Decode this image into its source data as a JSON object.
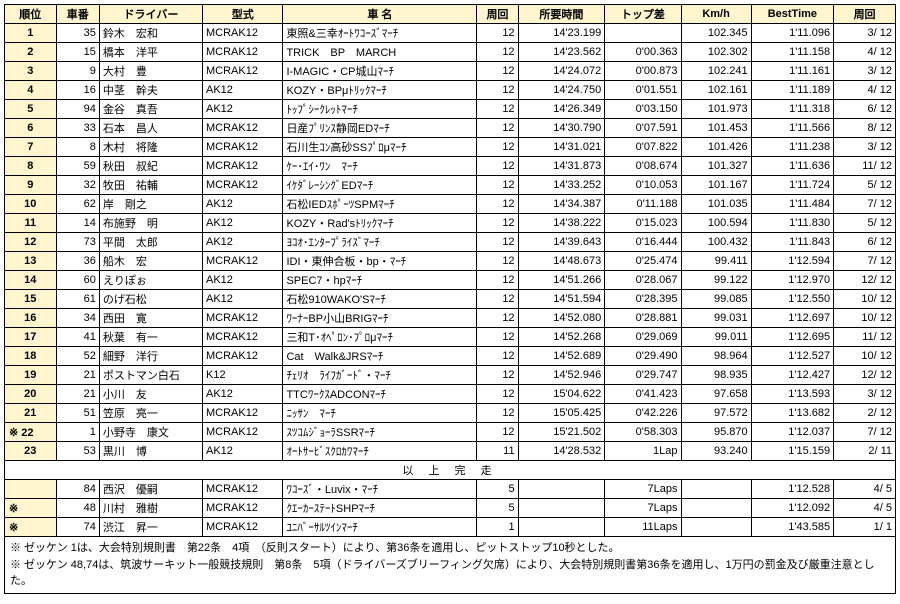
{
  "headers": {
    "rank": "順位",
    "carno": "車番",
    "driver": "ドライバー",
    "model": "型式",
    "carname": "車 名",
    "laps": "周回",
    "time": "所要時間",
    "gap": "トップ差",
    "kmh": "Km/h",
    "best": "BestTime",
    "bestlap": "周回"
  },
  "rows": [
    {
      "rank": "1",
      "carno": "35",
      "driver": "鈴木　宏和",
      "model": "MCRAK12",
      "carname": "東照&三幸ｵｰﾄﾜｺｰｽﾞﾏｰﾁ",
      "laps": "12",
      "time": "14'23.199",
      "gap": "",
      "kmh": "102.345",
      "best": "1'11.096",
      "bestlap": "3/ 12"
    },
    {
      "rank": "2",
      "carno": "15",
      "driver": "橋本　洋平",
      "model": "MCRAK12",
      "carname": "TRICK　BP　MARCH",
      "laps": "12",
      "time": "14'23.562",
      "gap": "0'00.363",
      "kmh": "102.302",
      "best": "1'11.158",
      "bestlap": "4/ 12"
    },
    {
      "rank": "3",
      "carno": "9",
      "driver": "大村　豊",
      "model": "MCRAK12",
      "carname": "I-MAGIC・CP城山ﾏｰﾁ",
      "laps": "12",
      "time": "14'24.072",
      "gap": "0'00.873",
      "kmh": "102.241",
      "best": "1'11.161",
      "bestlap": "3/ 12"
    },
    {
      "rank": "4",
      "carno": "16",
      "driver": "中茎　幹夫",
      "model": "AK12",
      "carname": "KOZY・BPμﾄﾘｯｸﾏｰﾁ",
      "laps": "12",
      "time": "14'24.750",
      "gap": "0'01.551",
      "kmh": "102.161",
      "best": "1'11.189",
      "bestlap": "4/ 12"
    },
    {
      "rank": "5",
      "carno": "94",
      "driver": "金谷　真吾",
      "model": "AK12",
      "carname": "ﾄｯﾌﾟｼｰｸﾚｯﾄﾏｰﾁ",
      "laps": "12",
      "time": "14'26.349",
      "gap": "0'03.150",
      "kmh": "101.973",
      "best": "1'11.318",
      "bestlap": "6/ 12"
    },
    {
      "rank": "6",
      "carno": "33",
      "driver": "石本　昌人",
      "model": "MCRAK12",
      "carname": "日産ﾌﾟﾘﾝｽ静岡EDﾏｰﾁ",
      "laps": "12",
      "time": "14'30.790",
      "gap": "0'07.591",
      "kmh": "101.453",
      "best": "1'11.566",
      "bestlap": "8/ 12"
    },
    {
      "rank": "7",
      "carno": "8",
      "driver": "木村　将隆",
      "model": "MCRAK12",
      "carname": "石川生ｺﾝ高砂SSﾌﾟﾛμﾏｰﾁ",
      "laps": "12",
      "time": "14'31.021",
      "gap": "0'07.822",
      "kmh": "101.426",
      "best": "1'11.238",
      "bestlap": "3/ 12"
    },
    {
      "rank": "8",
      "carno": "59",
      "driver": "秋田　叔紀",
      "model": "MCRAK12",
      "carname": "ｹｰ･ｴｲ･ﾜﾝ　ﾏｰﾁ",
      "laps": "12",
      "time": "14'31.873",
      "gap": "0'08.674",
      "kmh": "101.327",
      "best": "1'11.636",
      "bestlap": "11/ 12"
    },
    {
      "rank": "9",
      "carno": "32",
      "driver": "牧田　祐輔",
      "model": "MCRAK12",
      "carname": "ｲｹﾀﾞﾚｰｼﾝｸﾞEDﾏｰﾁ",
      "laps": "12",
      "time": "14'33.252",
      "gap": "0'10.053",
      "kmh": "101.167",
      "best": "1'11.724",
      "bestlap": "5/ 12"
    },
    {
      "rank": "10",
      "carno": "62",
      "driver": "岸　剛之",
      "model": "AK12",
      "carname": "石松IEDｽﾎﾟｰﾂSPMﾏｰﾁ",
      "laps": "12",
      "time": "14'34.387",
      "gap": "0'11.188",
      "kmh": "101.035",
      "best": "1'11.484",
      "bestlap": "7/ 12"
    },
    {
      "rank": "11",
      "carno": "14",
      "driver": "布施野　明",
      "model": "AK12",
      "carname": "KOZY・Rad'sﾄﾘｯｸﾏｰﾁ",
      "laps": "12",
      "time": "14'38.222",
      "gap": "0'15.023",
      "kmh": "100.594",
      "best": "1'11.830",
      "bestlap": "5/ 12"
    },
    {
      "rank": "12",
      "carno": "73",
      "driver": "平間　太郎",
      "model": "AK12",
      "carname": "ﾖｺｵ･ｴﾝﾀｰﾌﾟﾗｲｽﾞﾏｰﾁ",
      "laps": "12",
      "time": "14'39.643",
      "gap": "0'16.444",
      "kmh": "100.432",
      "best": "1'11.843",
      "bestlap": "6/ 12"
    },
    {
      "rank": "13",
      "carno": "36",
      "driver": "船木　宏",
      "model": "MCRAK12",
      "carname": "IDI・東伸合板・bp・ﾏｰﾁ",
      "laps": "12",
      "time": "14'48.673",
      "gap": "0'25.474",
      "kmh": "99.411",
      "best": "1'12.594",
      "bestlap": "7/ 12"
    },
    {
      "rank": "14",
      "carno": "60",
      "driver": "えりぽぉ",
      "model": "AK12",
      "carname": "SPEC7・hpﾏｰﾁ",
      "laps": "12",
      "time": "14'51.266",
      "gap": "0'28.067",
      "kmh": "99.122",
      "best": "1'12.970",
      "bestlap": "12/ 12"
    },
    {
      "rank": "15",
      "carno": "61",
      "driver": "のげ石松",
      "model": "AK12",
      "carname": "石松910WAKO'Sﾏｰﾁ",
      "laps": "12",
      "time": "14'51.594",
      "gap": "0'28.395",
      "kmh": "99.085",
      "best": "1'12.550",
      "bestlap": "10/ 12"
    },
    {
      "rank": "16",
      "carno": "34",
      "driver": "西田　寛",
      "model": "MCRAK12",
      "carname": "ﾜｰﾅｰBP小山BRIGﾏｰﾁ",
      "laps": "12",
      "time": "14'52.080",
      "gap": "0'28.881",
      "kmh": "99.031",
      "best": "1'12.697",
      "bestlap": "10/ 12"
    },
    {
      "rank": "17",
      "carno": "41",
      "driver": "秋葉　有一",
      "model": "MCRAK12",
      "carname": "三和T･ｵﾍﾟﾛﾝ･ﾌﾟﾛμﾏｰﾁ",
      "laps": "12",
      "time": "14'52.268",
      "gap": "0'29.069",
      "kmh": "99.011",
      "best": "1'12.695",
      "bestlap": "11/ 12"
    },
    {
      "rank": "18",
      "carno": "52",
      "driver": "細野　洋行",
      "model": "MCRAK12",
      "carname": "Cat　Walk&JRSﾏｰﾁ",
      "laps": "12",
      "time": "14'52.689",
      "gap": "0'29.490",
      "kmh": "98.964",
      "best": "1'12.527",
      "bestlap": "10/ 12"
    },
    {
      "rank": "19",
      "carno": "21",
      "driver": "ポストマン白石",
      "model": "K12",
      "carname": "ﾁｪﾘｵ　ﾗｲﾌｶﾞｰﾄﾞ・ﾏｰﾁ",
      "laps": "12",
      "time": "14'52.946",
      "gap": "0'29.747",
      "kmh": "98.935",
      "best": "1'12.427",
      "bestlap": "12/ 12"
    },
    {
      "rank": "20",
      "carno": "21",
      "driver": "小川　友",
      "model": "AK12",
      "carname": "TTCﾜｰｸｽADCONﾏｰﾁ",
      "laps": "12",
      "time": "15'04.622",
      "gap": "0'41.423",
      "kmh": "97.658",
      "best": "1'13.593",
      "bestlap": "3/ 12"
    },
    {
      "rank": "21",
      "carno": "51",
      "driver": "笠原　亮一",
      "model": "MCRAK12",
      "carname": "ﾆｯｻﾝ　ﾏｰﾁ",
      "laps": "12",
      "time": "15'05.425",
      "gap": "0'42.226",
      "kmh": "97.572",
      "best": "1'13.682",
      "bestlap": "2/ 12"
    },
    {
      "rank": "※ 22",
      "mark": true,
      "carno": "1",
      "driver": "小野寺　康文",
      "model": "MCRAK12",
      "carname": "ｽﾂｺﾑｼﾞｮｰﾗSSRﾏｰﾁ",
      "laps": "12",
      "time": "15'21.502",
      "gap": "0'58.303",
      "kmh": "95.870",
      "best": "1'12.037",
      "bestlap": "7/ 12"
    },
    {
      "rank": "23",
      "carno": "53",
      "driver": "黒川　博",
      "model": "AK12",
      "carname": "ｵｰﾄｻｰﾋﾞｽｸﾛｶﾜﾏｰﾁ",
      "laps": "11",
      "time": "14'28.532",
      "gap": "1Lap",
      "kmh": "93.240",
      "best": "1'15.159",
      "bestlap": "2/ 11"
    }
  ],
  "separator": "以 上 完 走",
  "dnf": [
    {
      "rank": "",
      "carno": "84",
      "driver": "西沢　優嗣",
      "model": "MCRAK12",
      "carname": "ﾜｺｰｽﾞ・Luvix・ﾏｰﾁ",
      "laps": "5",
      "time": "",
      "gap": "7Laps",
      "kmh": "",
      "best": "1'12.528",
      "bestlap": "4/  5"
    },
    {
      "rank": "※",
      "mark": true,
      "carno": "48",
      "driver": "川村　雅樹",
      "model": "MCRAK12",
      "carname": "ｸｴｰｶｰｽﾃｰﾄSHPﾏｰﾁ",
      "laps": "5",
      "time": "",
      "gap": "7Laps",
      "kmh": "",
      "best": "1'12.092",
      "bestlap": "4/  5"
    },
    {
      "rank": "※",
      "mark": true,
      "carno": "74",
      "driver": "渋江　昇一",
      "model": "MCRAK12",
      "carname": "ﾕﾆﾊﾞｰｻﾙﾂｲﾝﾏｰﾁ",
      "laps": "1",
      "time": "",
      "gap": "11Laps",
      "kmh": "",
      "best": "1'43.585",
      "bestlap": "1/  1"
    }
  ],
  "notes": [
    "※ ゼッケン  1は、大会特別規則書　第22条　4項　（反則スタート）により、第36条を適用し、ピットストップ10秒とした。",
    "※ ゼッケン 48,74は、筑波サーキット一般競技規則　第8条　5項（ドライバーズブリーフィング欠席）により、大会特別規則書第36条を適用し、1万円の罰金及び厳重注意とした。"
  ]
}
